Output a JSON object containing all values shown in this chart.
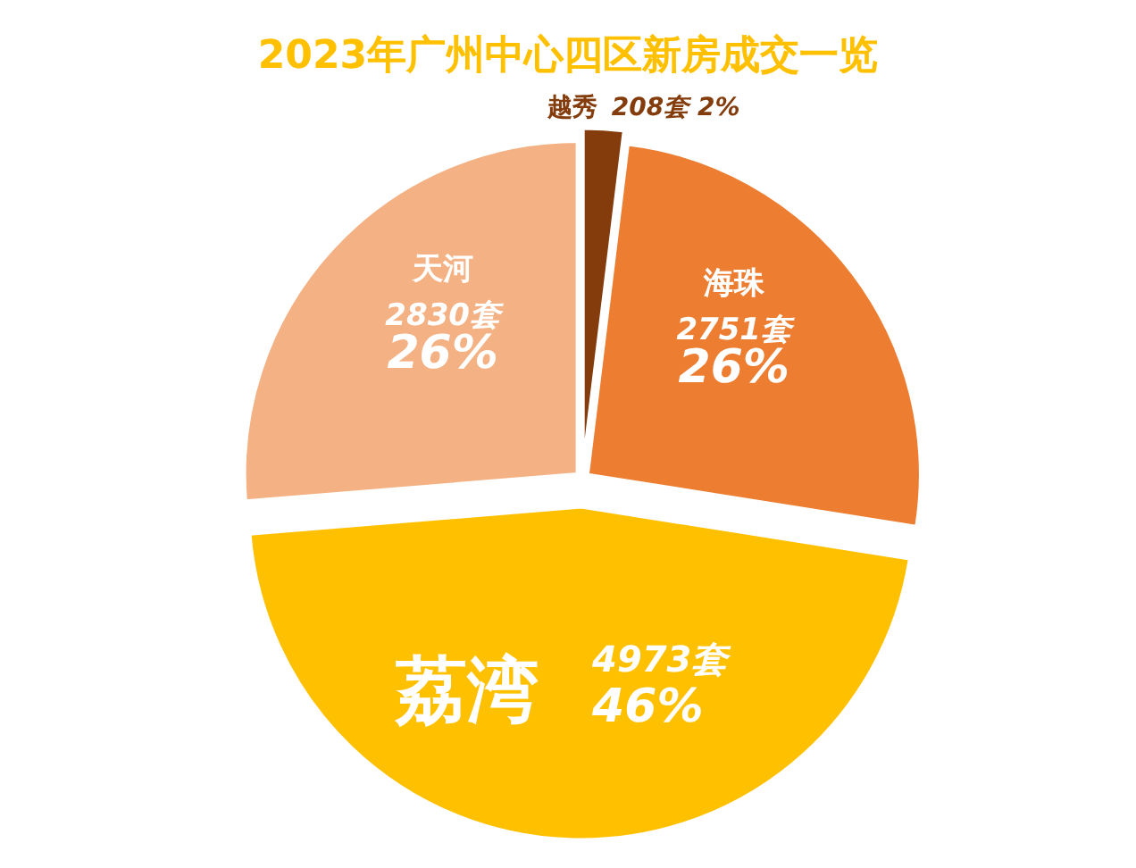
{
  "chart_data": {
    "type": "pie",
    "title": "2023年广州中心四区新房成交一览",
    "categories": [
      "越秀",
      "海珠",
      "荔湾",
      "天河"
    ],
    "values": [
      208,
      2751,
      4973,
      2830
    ],
    "value_labels": [
      "208套 2%",
      "2751套 26%",
      "4973套 46%",
      "2830套 26%"
    ],
    "colors": [
      "#843c0c",
      "#ed7d31",
      "#ffc000",
      "#f4b183"
    ],
    "legend": false
  }
}
